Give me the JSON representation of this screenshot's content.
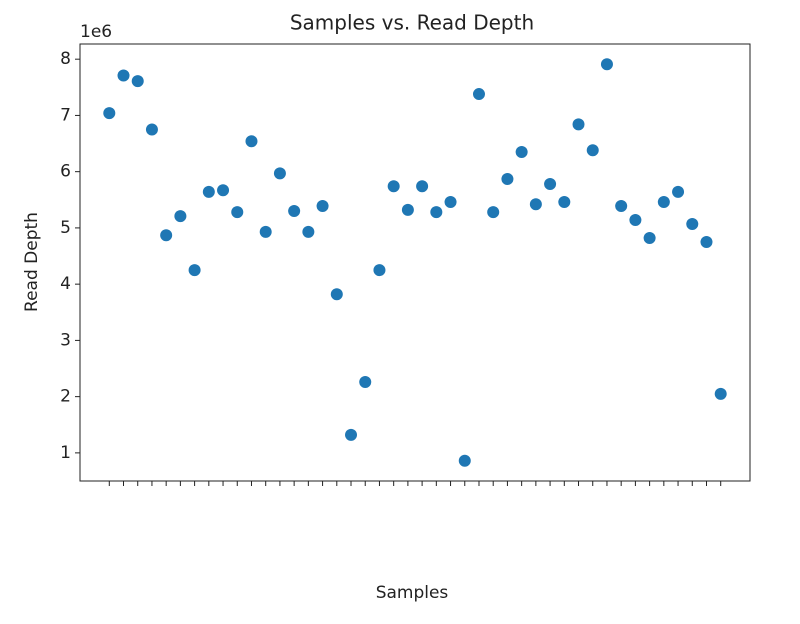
{
  "chart_data": {
    "type": "scatter",
    "title": "Samples vs. Read Depth",
    "xlabel": "Samples",
    "ylabel": "Read Depth",
    "y_offset_label": "1e6",
    "categories": [
      null,
      null,
      null,
      null,
      null,
      null,
      null,
      null,
      null,
      null,
      null,
      null,
      null,
      null,
      null,
      null,
      null,
      null,
      null,
      null,
      null,
      null,
      null,
      null,
      null,
      null,
      null,
      null,
      null,
      null,
      null,
      null,
      null,
      null,
      null,
      null,
      null,
      null,
      null,
      null,
      null,
      null,
      null,
      null
    ],
    "values": [
      7.04,
      7.71,
      7.61,
      6.75,
      4.87,
      5.21,
      4.25,
      5.64,
      5.67,
      5.28,
      6.54,
      4.93,
      5.97,
      5.3,
      4.93,
      5.39,
      3.82,
      1.32,
      2.26,
      4.25,
      5.74,
      5.32,
      5.74,
      5.28,
      5.46,
      0.86,
      7.38,
      5.28,
      5.87,
      6.35,
      5.42,
      5.78,
      5.46,
      6.84,
      6.38,
      7.91,
      5.39,
      5.14,
      4.82,
      5.46,
      5.64,
      5.07,
      4.75,
      2.05
    ],
    "color": "#1f77b4",
    "ylim": [
      0.5,
      8.27
    ],
    "yticks": [
      1,
      2,
      3,
      4,
      5,
      6,
      7,
      8
    ],
    "grid": false
  }
}
